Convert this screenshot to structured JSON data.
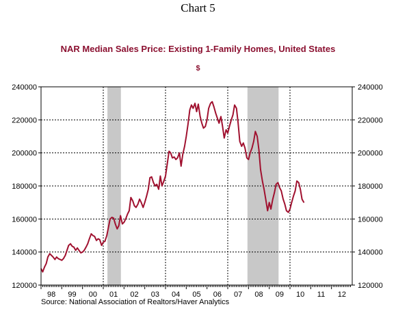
{
  "chart_label": "Chart 5",
  "colors": {
    "series": "#a0112f",
    "title": "#8b1030",
    "recession": "#c8c8c8"
  },
  "chart_data": {
    "type": "line",
    "title": "NAR Median Sales Price: Existing 1-Family Homes, United States",
    "subtitle": "$",
    "source": "Source:  National Association of Realtors/Haver Analytics",
    "x_tick_labels": [
      "98",
      "99",
      "00",
      "01",
      "02",
      "03",
      "04",
      "05",
      "06",
      "07",
      "08",
      "09",
      "10",
      "11",
      "12"
    ],
    "y_tick_labels": [
      "240000",
      "220000",
      "200000",
      "180000",
      "160000",
      "140000",
      "120000"
    ],
    "x_range": [
      1998.0,
      2013.0
    ],
    "ylim": [
      120000,
      240000
    ],
    "grid": "dotted vertical year dividers and dotted horizontal lines",
    "recessions": [
      [
        2001.2,
        2001.85
      ],
      [
        2007.95,
        2009.45
      ]
    ],
    "series": [
      {
        "values": [
          [
            1998.0,
            130000
          ],
          [
            1998.08,
            128000
          ],
          [
            1998.17,
            131000
          ],
          [
            1998.25,
            133000
          ],
          [
            1998.33,
            137000
          ],
          [
            1998.42,
            139000
          ],
          [
            1998.5,
            138000
          ],
          [
            1998.58,
            137000
          ],
          [
            1998.67,
            135500
          ],
          [
            1998.75,
            137000
          ],
          [
            1998.83,
            136000
          ],
          [
            1998.92,
            135500
          ],
          [
            1999.0,
            135000
          ],
          [
            1999.08,
            136000
          ],
          [
            1999.17,
            138000
          ],
          [
            1999.25,
            141000
          ],
          [
            1999.33,
            144000
          ],
          [
            1999.42,
            145000
          ],
          [
            1999.5,
            143500
          ],
          [
            1999.58,
            143000
          ],
          [
            1999.67,
            141000
          ],
          [
            1999.75,
            142500
          ],
          [
            1999.83,
            141000
          ],
          [
            1999.92,
            139500
          ],
          [
            2000.0,
            140000
          ],
          [
            2000.08,
            141000
          ],
          [
            2000.17,
            143000
          ],
          [
            2000.25,
            145000
          ],
          [
            2000.33,
            148000
          ],
          [
            2000.42,
            151000
          ],
          [
            2000.5,
            150000
          ],
          [
            2000.58,
            149500
          ],
          [
            2000.67,
            147000
          ],
          [
            2000.75,
            148000
          ],
          [
            2000.83,
            147500
          ],
          [
            2000.92,
            144000
          ],
          [
            2001.0,
            146000
          ],
          [
            2001.08,
            146500
          ],
          [
            2001.17,
            150000
          ],
          [
            2001.25,
            155000
          ],
          [
            2001.33,
            160000
          ],
          [
            2001.42,
            161000
          ],
          [
            2001.5,
            160500
          ],
          [
            2001.58,
            157000
          ],
          [
            2001.67,
            154000
          ],
          [
            2001.75,
            156000
          ],
          [
            2001.83,
            162000
          ],
          [
            2001.92,
            157000
          ],
          [
            2002.0,
            158000
          ],
          [
            2002.08,
            160000
          ],
          [
            2002.17,
            163000
          ],
          [
            2002.25,
            165000
          ],
          [
            2002.33,
            173000
          ],
          [
            2002.42,
            171000
          ],
          [
            2002.5,
            168000
          ],
          [
            2002.58,
            167000
          ],
          [
            2002.67,
            169000
          ],
          [
            2002.75,
            172000
          ],
          [
            2002.83,
            170000
          ],
          [
            2002.92,
            167000
          ],
          [
            2003.0,
            170000
          ],
          [
            2003.08,
            173500
          ],
          [
            2003.17,
            178000
          ],
          [
            2003.25,
            185000
          ],
          [
            2003.33,
            185500
          ],
          [
            2003.42,
            182000
          ],
          [
            2003.5,
            180000
          ],
          [
            2003.58,
            181000
          ],
          [
            2003.67,
            178000
          ],
          [
            2003.75,
            186000
          ],
          [
            2003.83,
            180000
          ],
          [
            2003.92,
            183000
          ],
          [
            2004.0,
            186000
          ],
          [
            2004.08,
            193000
          ],
          [
            2004.17,
            201000
          ],
          [
            2004.25,
            200000
          ],
          [
            2004.33,
            197000
          ],
          [
            2004.42,
            197500
          ],
          [
            2004.5,
            196000
          ],
          [
            2004.58,
            197000
          ],
          [
            2004.67,
            200000
          ],
          [
            2004.75,
            192000
          ],
          [
            2004.83,
            199000
          ],
          [
            2004.92,
            204000
          ],
          [
            2005.0,
            210000
          ],
          [
            2005.08,
            217000
          ],
          [
            2005.17,
            226000
          ],
          [
            2005.25,
            229000
          ],
          [
            2005.33,
            227000
          ],
          [
            2005.42,
            230000
          ],
          [
            2005.5,
            225000
          ],
          [
            2005.58,
            229500
          ],
          [
            2005.67,
            222000
          ],
          [
            2005.75,
            218000
          ],
          [
            2005.83,
            215000
          ],
          [
            2005.92,
            216000
          ],
          [
            2006.0,
            220000
          ],
          [
            2006.08,
            227000
          ],
          [
            2006.17,
            230000
          ],
          [
            2006.25,
            231000
          ],
          [
            2006.33,
            228000
          ],
          [
            2006.42,
            224000
          ],
          [
            2006.5,
            221000
          ],
          [
            2006.58,
            218000
          ],
          [
            2006.67,
            222000
          ],
          [
            2006.75,
            216000
          ],
          [
            2006.83,
            209000
          ],
          [
            2006.92,
            214000
          ],
          [
            2007.0,
            212000
          ],
          [
            2007.08,
            216000
          ],
          [
            2007.17,
            220000
          ],
          [
            2007.25,
            223000
          ],
          [
            2007.33,
            229000
          ],
          [
            2007.42,
            227000
          ],
          [
            2007.5,
            218000
          ],
          [
            2007.58,
            207000
          ],
          [
            2007.67,
            204000
          ],
          [
            2007.75,
            206000
          ],
          [
            2007.83,
            203000
          ],
          [
            2007.92,
            197000
          ],
          [
            2008.0,
            196000
          ],
          [
            2008.08,
            200000
          ],
          [
            2008.17,
            203000
          ],
          [
            2008.25,
            207000
          ],
          [
            2008.33,
            213000
          ],
          [
            2008.42,
            210000
          ],
          [
            2008.5,
            202000
          ],
          [
            2008.58,
            190000
          ],
          [
            2008.67,
            183000
          ],
          [
            2008.75,
            178000
          ],
          [
            2008.83,
            172000
          ],
          [
            2008.92,
            165000
          ],
          [
            2009.0,
            170000
          ],
          [
            2009.08,
            166000
          ],
          [
            2009.17,
            172000
          ],
          [
            2009.25,
            176000
          ],
          [
            2009.33,
            181000
          ],
          [
            2009.42,
            182000
          ],
          [
            2009.5,
            179000
          ],
          [
            2009.58,
            177000
          ],
          [
            2009.67,
            172000
          ],
          [
            2009.75,
            169000
          ],
          [
            2009.83,
            165000
          ],
          [
            2009.92,
            164000
          ],
          [
            2010.0,
            166000
          ],
          [
            2010.08,
            170000
          ],
          [
            2010.17,
            174000
          ],
          [
            2010.25,
            177000
          ],
          [
            2010.33,
            183000
          ],
          [
            2010.42,
            182000
          ],
          [
            2010.5,
            178000
          ],
          [
            2010.58,
            172000
          ],
          [
            2010.67,
            170000
          ]
        ]
      }
    ]
  }
}
